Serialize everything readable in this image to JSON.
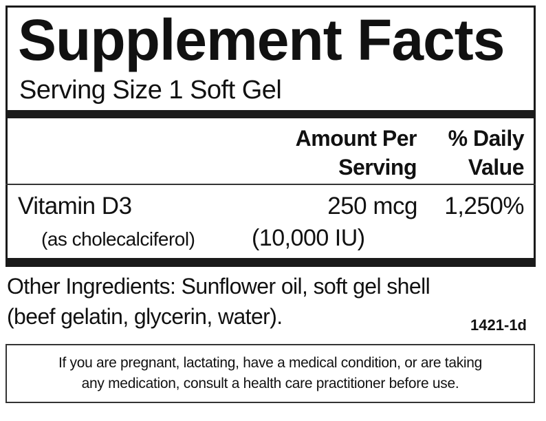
{
  "label": {
    "title": "Supplement Facts",
    "serving_size": "Serving Size 1 Soft Gel",
    "header": {
      "amount_line1": "Amount Per",
      "amount_line2": "Serving",
      "dv_line1": "% Daily",
      "dv_line2": "Value"
    },
    "nutrients": [
      {
        "name": "Vitamin D3",
        "source": "(as cholecalciferol)",
        "amount": "250 mcg",
        "amount_alt": "(10,000 IU)",
        "daily_value": "1,250%"
      }
    ],
    "other_ingredients": [
      "Other Ingredients: Sunflower oil, soft gel shell",
      "(beef gelatin, glycerin, water)."
    ],
    "code": "1421-1d",
    "warning": [
      "If you are pregnant, lactating, have a medical condition, or are taking",
      "any medication, consult a health care practitioner before use."
    ]
  }
}
